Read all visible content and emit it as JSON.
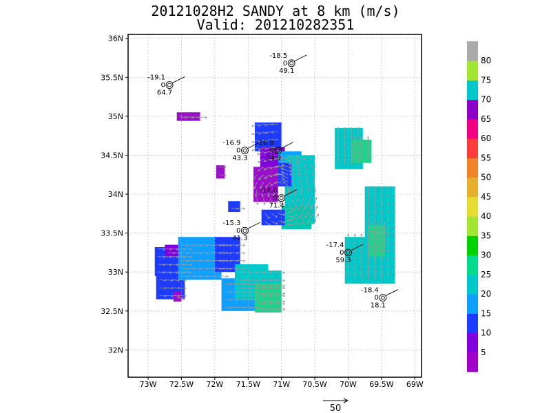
{
  "title": {
    "line1": "20121028H2 SANDY at 8 km (m/s)",
    "line2": "Valid: 201210282351"
  },
  "map": {
    "lon_range": [
      -73.3,
      -68.9
    ],
    "lat_range": [
      31.65,
      36.05
    ],
    "x_ticks": [
      {
        "value": -73.0,
        "label": "73W"
      },
      {
        "value": -72.5,
        "label": "72.5W"
      },
      {
        "value": -72.0,
        "label": "72W"
      },
      {
        "value": -71.5,
        "label": "71.5W"
      },
      {
        "value": -71.0,
        "label": "71W"
      },
      {
        "value": -70.5,
        "label": "70.5W"
      },
      {
        "value": -70.0,
        "label": "70W"
      },
      {
        "value": -69.5,
        "label": "69.5W"
      },
      {
        "value": -69.0,
        "label": "69W"
      }
    ],
    "y_ticks": [
      {
        "value": 32.0,
        "label": "32N"
      },
      {
        "value": 32.5,
        "label": "32.5N"
      },
      {
        "value": 33.0,
        "label": "33N"
      },
      {
        "value": 33.5,
        "label": "33.5N"
      },
      {
        "value": 34.0,
        "label": "34N"
      },
      {
        "value": 34.5,
        "label": "34.5N"
      },
      {
        "value": 35.0,
        "label": "35N"
      },
      {
        "value": 35.5,
        "label": "35.5N"
      },
      {
        "value": 36.0,
        "label": "36N"
      }
    ],
    "grid": true
  },
  "colorbar": {
    "colors": [
      "#a000c8",
      "#8200dc",
      "#1e3cff",
      "#0fa0ff",
      "#00c8c8",
      "#00dc8c",
      "#00d200",
      "#a0e632",
      "#e6dc32",
      "#e6af2d",
      "#f08228",
      "#fa3c3c",
      "#f00082",
      "#8c00c8",
      "#00c8c8",
      "#a0e632",
      "#aaaaaa"
    ],
    "labels": [
      "5",
      "10",
      "15",
      "20",
      "25",
      "30",
      "35",
      "40",
      "45",
      "50",
      "55",
      "60",
      "65",
      "70",
      "75",
      "80"
    ]
  },
  "observations": [
    {
      "lon": -72.68,
      "lat": 35.4,
      "temp": "-19.1",
      "dew": "0",
      "val": "64.7"
    },
    {
      "lon": -70.85,
      "lat": 35.68,
      "temp": "-18.5",
      "dew": "0",
      "val": "49.1"
    },
    {
      "lon": -71.55,
      "lat": 34.56,
      "temp": "-16.9",
      "dew": "0",
      "val": "43.3"
    },
    {
      "lon": -71.05,
      "lat": 34.56,
      "temp": "-16.8",
      "dew": "0",
      "val": "74.9"
    },
    {
      "lon": -71.0,
      "lat": 33.95,
      "temp": "-14.6",
      "dew": "0",
      "val": "71.4"
    },
    {
      "lon": -71.55,
      "lat": 33.53,
      "temp": "-15.3",
      "dew": "0",
      "val": "41.3"
    },
    {
      "lon": -70.0,
      "lat": 33.25,
      "temp": "-17.4",
      "dew": "0",
      "val": "59.3"
    },
    {
      "lon": -69.48,
      "lat": 32.67,
      "temp": "-18.4",
      "dew": "0",
      "val": "18.1"
    }
  ],
  "reference_vector": {
    "label": "50"
  }
}
